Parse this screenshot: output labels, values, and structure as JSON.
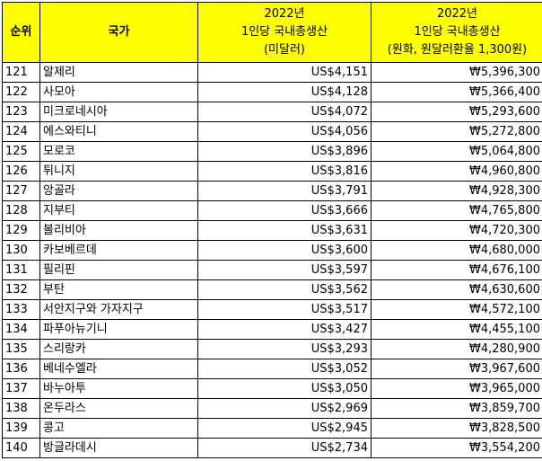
{
  "header": {
    "rank": "순위",
    "country": "국가",
    "usd_line1": "2022년",
    "usd_line2": "1인당 국내총생산",
    "usd_line3": "(미달러)",
    "krw_line1": "2022년",
    "krw_line2": "1인당 국내총생산",
    "krw_line3": "(원화, 원달러환율 1,300원)"
  },
  "rows": [
    {
      "rank": "121",
      "country": "알제리",
      "usd": "US$4,151",
      "krw": "₩5,396,300"
    },
    {
      "rank": "122",
      "country": "사모아",
      "usd": "US$4,128",
      "krw": "₩5,366,400"
    },
    {
      "rank": "123",
      "country": "미크로네시아",
      "usd": "US$4,072",
      "krw": "₩5,293,600"
    },
    {
      "rank": "124",
      "country": "에스와티니",
      "usd": "US$4,056",
      "krw": "₩5,272,800"
    },
    {
      "rank": "125",
      "country": "모로코",
      "usd": "US$3,896",
      "krw": "₩5,064,800"
    },
    {
      "rank": "126",
      "country": "튀니지",
      "usd": "US$3,816",
      "krw": "₩4,960,800"
    },
    {
      "rank": "127",
      "country": "앙골라",
      "usd": "US$3,791",
      "krw": "₩4,928,300"
    },
    {
      "rank": "128",
      "country": "지부티",
      "usd": "US$3,666",
      "krw": "₩4,765,800"
    },
    {
      "rank": "129",
      "country": "볼리비아",
      "usd": "US$3,631",
      "krw": "₩4,720,300"
    },
    {
      "rank": "130",
      "country": "카보베르데",
      "usd": "US$3,600",
      "krw": "₩4,680,000"
    },
    {
      "rank": "131",
      "country": "필리핀",
      "usd": "US$3,597",
      "krw": "₩4,676,100"
    },
    {
      "rank": "132",
      "country": "부탄",
      "usd": "US$3,562",
      "krw": "₩4,630,600"
    },
    {
      "rank": "133",
      "country": "서안지구와 가자지구",
      "usd": "US$3,517",
      "krw": "₩4,572,100"
    },
    {
      "rank": "134",
      "country": "파푸아뉴기니",
      "usd": "US$3,427",
      "krw": "₩4,455,100"
    },
    {
      "rank": "135",
      "country": "스리랑카",
      "usd": "US$3,293",
      "krw": "₩4,280,900"
    },
    {
      "rank": "136",
      "country": "베네수엘라",
      "usd": "US$3,052",
      "krw": "₩3,967,600"
    },
    {
      "rank": "137",
      "country": "바누아투",
      "usd": "US$3,050",
      "krw": "₩3,965,000"
    },
    {
      "rank": "138",
      "country": "온두라스",
      "usd": "US$2,969",
      "krw": "₩3,859,700"
    },
    {
      "rank": "139",
      "country": "콩고",
      "usd": "US$2,945",
      "krw": "₩3,828,500"
    },
    {
      "rank": "140",
      "country": "방글라데시",
      "usd": "US$2,734",
      "krw": "₩3,554,200"
    }
  ],
  "colors": {
    "header_bg": "#ffff00",
    "border": "#000000"
  }
}
